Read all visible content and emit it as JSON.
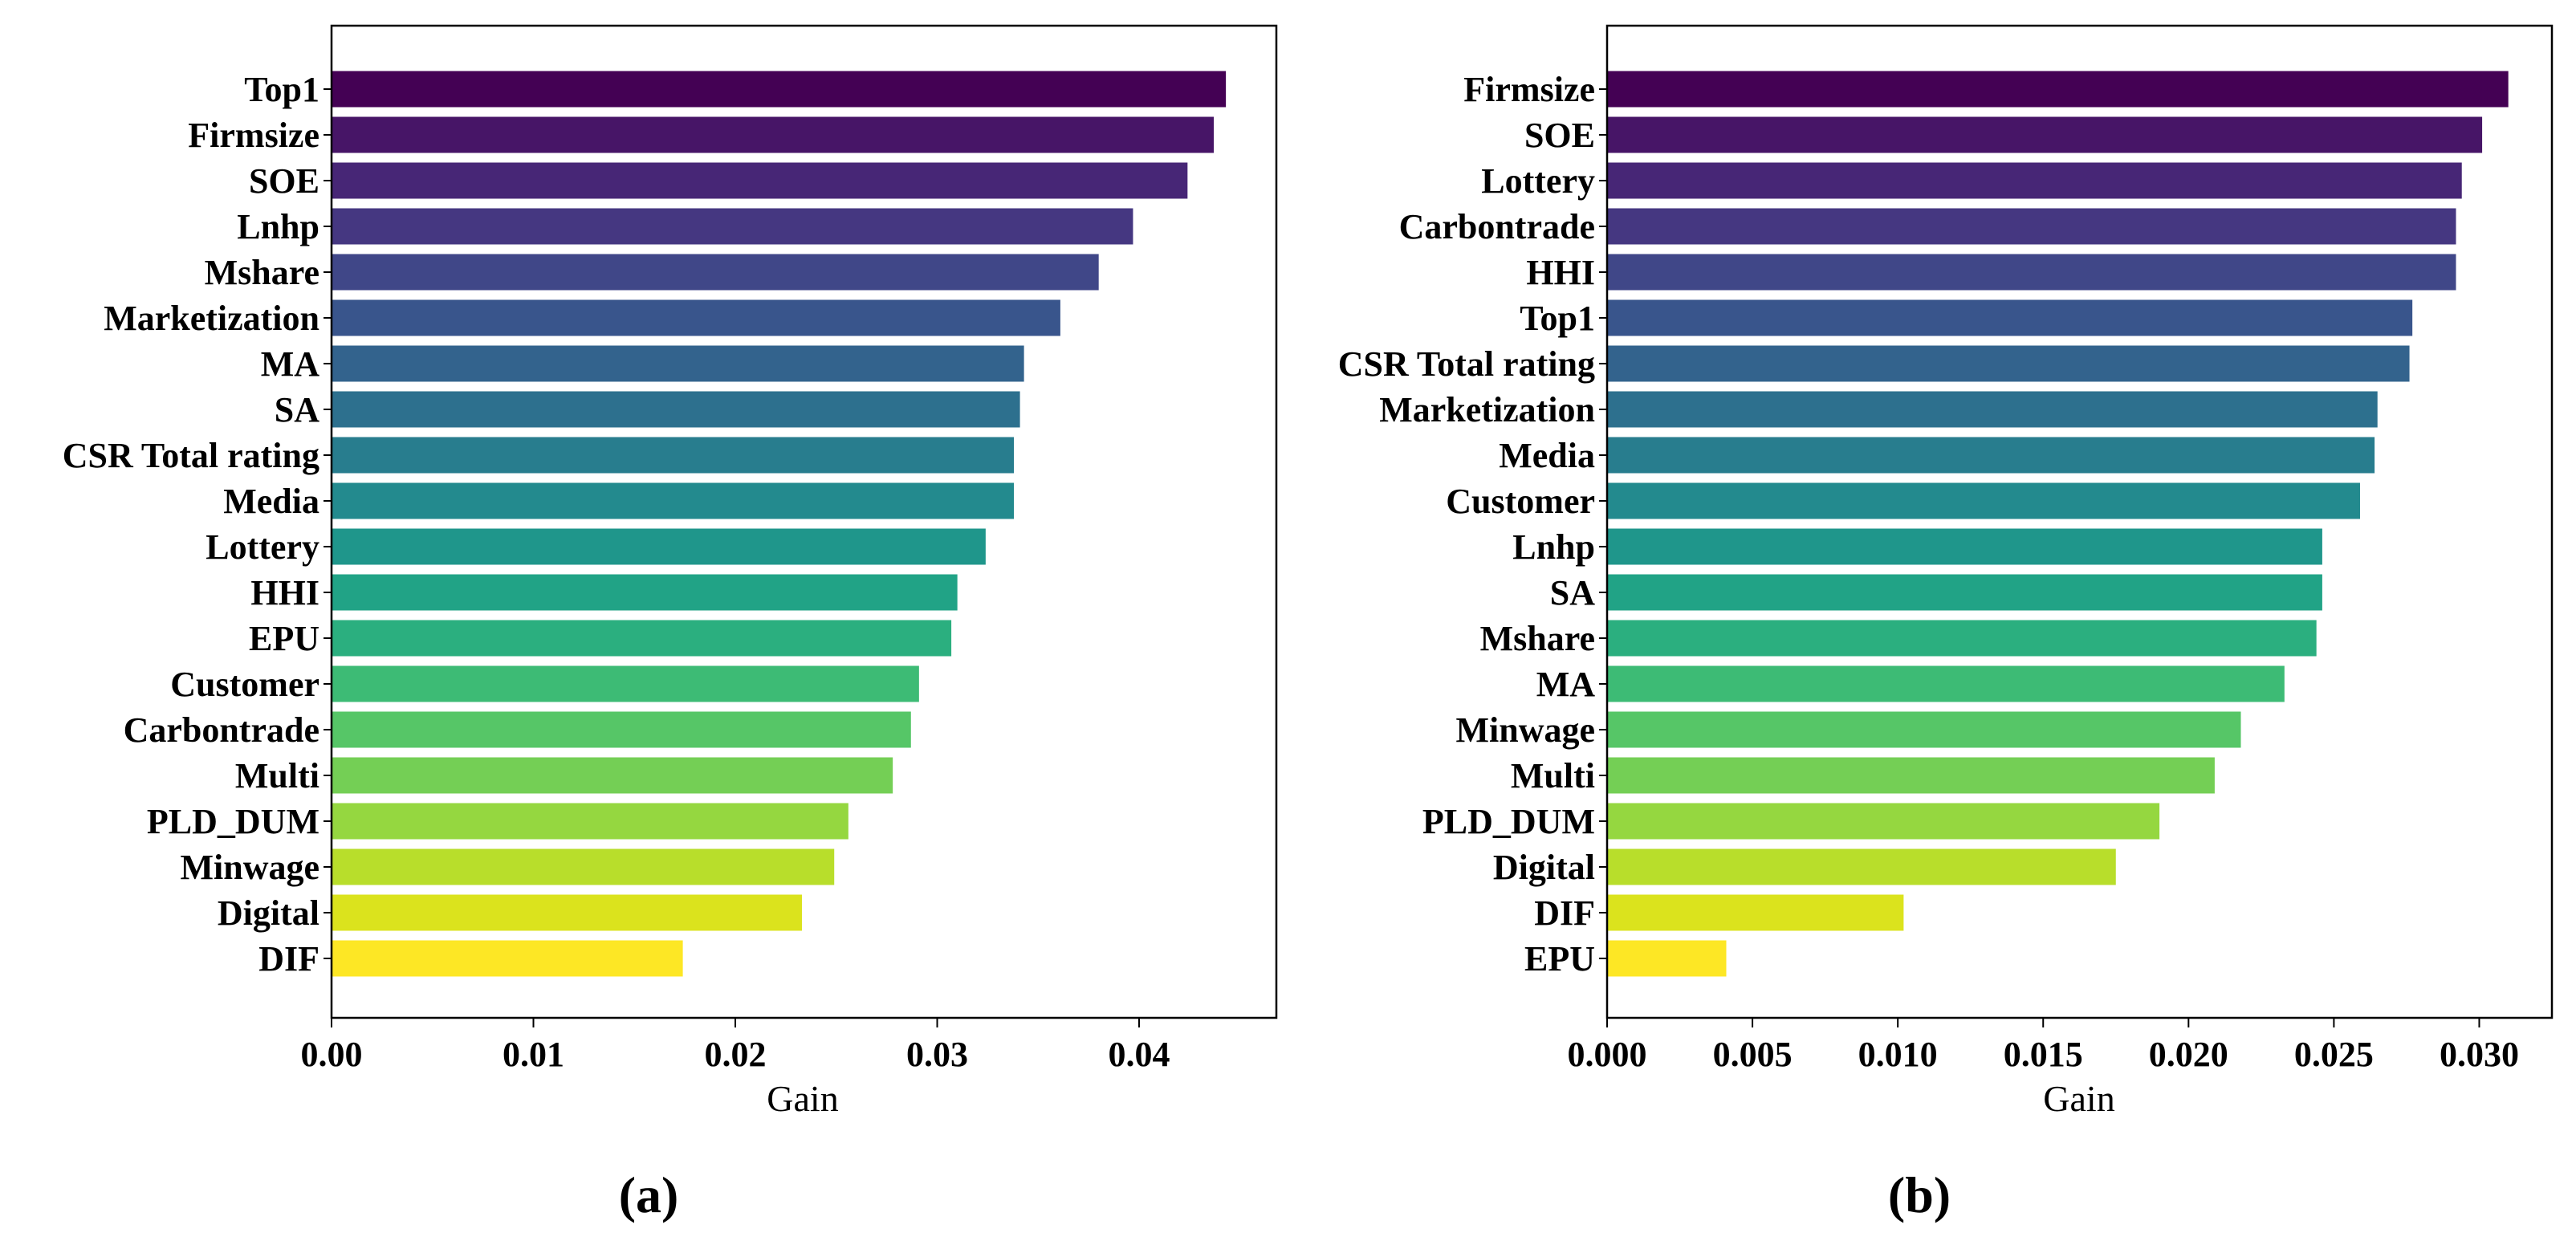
{
  "chart_data": [
    {
      "type": "bar",
      "orientation": "horizontal",
      "panel_label": "(a)",
      "title": "",
      "xlabel": "Gain",
      "ylabel": "",
      "xlim": [
        0,
        0.0468
      ],
      "xticks": [
        0,
        0.01,
        0.02,
        0.03,
        0.04
      ],
      "xtick_labels": [
        "0.00",
        "0.01",
        "0.02",
        "0.03",
        "0.04"
      ],
      "grid": false,
      "colormap": "viridis (reversed)",
      "categories": [
        "Top1",
        "Firmsize",
        "SOE",
        "Lnhp",
        "Mshare",
        "Marketization",
        "MA",
        "SA",
        "CSR Total rating",
        "Media",
        "Lottery",
        "HHI",
        "EPU",
        "Customer",
        "Carbontrade",
        "Multi",
        "PLD_DUM",
        "Minwage",
        "Digital",
        "DIF"
      ],
      "values": [
        0.0443,
        0.0437,
        0.0424,
        0.0397,
        0.038,
        0.0361,
        0.0343,
        0.0341,
        0.0338,
        0.0338,
        0.0324,
        0.031,
        0.0307,
        0.0291,
        0.0287,
        0.0278,
        0.0256,
        0.0249,
        0.0233,
        0.0174
      ],
      "colors": [
        "#440154",
        "#481a6c",
        "#472f7d",
        "#414487",
        "#39568c",
        "#31688e",
        "#2a788e",
        "#23888e",
        "#1f988b",
        "#22a884",
        "#35b779",
        "#54c568",
        "#7ad151",
        "#a5db36",
        "#d2e21b",
        "#fde725"
      ]
    },
    {
      "type": "bar",
      "orientation": "horizontal",
      "panel_label": "(b)",
      "title": "",
      "xlabel": "Gain",
      "ylabel": "",
      "xlim": [
        0,
        0.0325
      ],
      "xticks": [
        0,
        0.005,
        0.01,
        0.015,
        0.02,
        0.025,
        0.03
      ],
      "xtick_labels": [
        "0.000",
        "0.005",
        "0.010",
        "0.015",
        "0.020",
        "0.025",
        "0.030"
      ],
      "grid": false,
      "colormap": "viridis (reversed)",
      "categories": [
        "Firmsize",
        "SOE",
        "Lottery",
        "Carbontrade",
        "HHI",
        "Top1",
        "CSR Total rating",
        "Marketization",
        "Media",
        "Customer",
        "Lnhp",
        "SA",
        "Mshare",
        "MA",
        "Minwage",
        "Multi",
        "PLD_DUM",
        "Digital",
        "DIF",
        "EPU"
      ],
      "values": [
        0.031,
        0.0301,
        0.0294,
        0.0292,
        0.0292,
        0.0277,
        0.0276,
        0.0265,
        0.0264,
        0.0259,
        0.0246,
        0.0246,
        0.0244,
        0.0233,
        0.0218,
        0.0209,
        0.019,
        0.0175,
        0.0102,
        0.0041
      ],
      "colors": [
        "#440154",
        "#481a6c",
        "#472f7d",
        "#414487",
        "#39568c",
        "#31688e",
        "#2a788e",
        "#23888e",
        "#1f988b",
        "#22a884",
        "#35b779",
        "#54c568",
        "#7ad151",
        "#a5db36",
        "#d2e21b",
        "#fde725"
      ]
    }
  ]
}
